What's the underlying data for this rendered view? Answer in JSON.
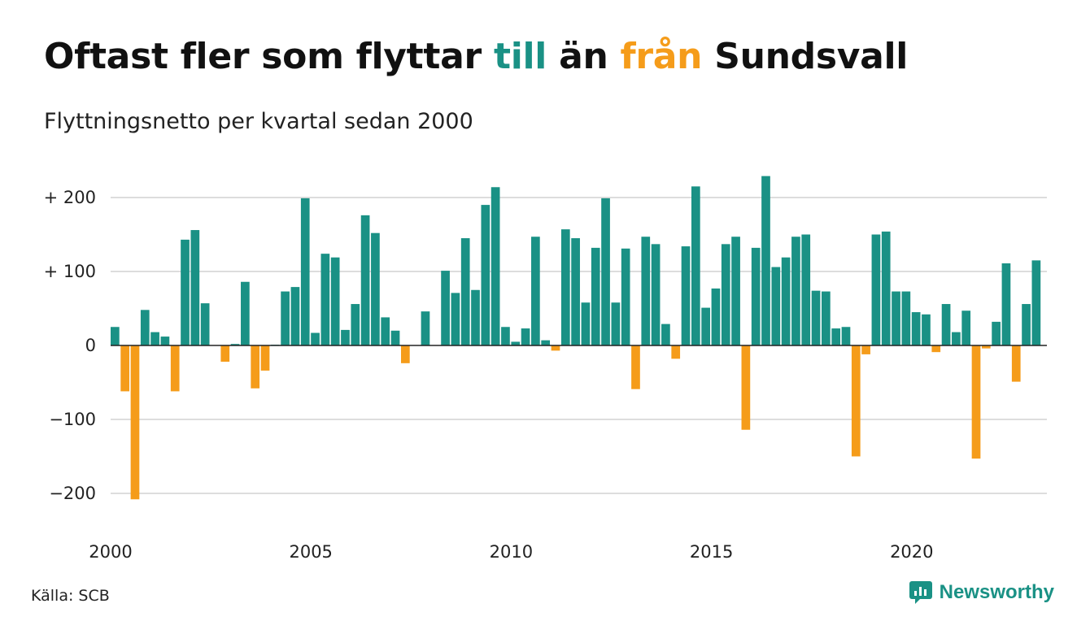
{
  "header": {
    "title_part1": "Oftast fler som flyttar ",
    "title_pos": "till",
    "title_part2": " än ",
    "title_neg": "från",
    "title_part3": " Sundsvall",
    "subtitle": "Flyttningsnetto per kvartal sedan 2000"
  },
  "footer": {
    "source": "Källa: SCB",
    "brand": "Newsworthy"
  },
  "colors": {
    "positive": "#1a9185",
    "negative": "#f59c1a",
    "grid": "#dddddd",
    "zero": "#222222"
  },
  "chart_data": {
    "type": "bar",
    "title": "Oftast fler som flyttar till än från Sundsvall",
    "subtitle": "Flyttningsnetto per kvartal sedan 2000",
    "xlabel": "",
    "ylabel": "",
    "ylim": [
      -230,
      230
    ],
    "grid": true,
    "legend": "none",
    "y_ticks": [
      {
        "value": 200,
        "label": "+ 200"
      },
      {
        "value": 100,
        "label": "+ 100"
      },
      {
        "value": 0,
        "label": "0"
      },
      {
        "value": -100,
        "label": "−100"
      },
      {
        "value": -200,
        "label": "−200"
      }
    ],
    "x_ticks": [
      {
        "year": 2000,
        "label": "2000"
      },
      {
        "year": 2005,
        "label": "2005"
      },
      {
        "year": 2010,
        "label": "2010"
      },
      {
        "year": 2015,
        "label": "2015"
      },
      {
        "year": 2020,
        "label": "2020"
      }
    ],
    "start": "2000 Q1",
    "frequency": "quarter",
    "values": [
      25,
      -62,
      -208,
      48,
      18,
      12,
      -62,
      143,
      156,
      57,
      0,
      -22,
      2,
      86,
      -58,
      -34,
      1,
      73,
      79,
      199,
      17,
      124,
      119,
      21,
      56,
      176,
      152,
      38,
      20,
      -24,
      0,
      46,
      0,
      101,
      71,
      145,
      75,
      190,
      214,
      25,
      5,
      23,
      147,
      7,
      -7,
      157,
      145,
      58,
      132,
      199,
      58,
      131,
      -59,
      147,
      137,
      29,
      -18,
      134,
      215,
      51,
      77,
      137,
      147,
      -114,
      132,
      229,
      106,
      119,
      147,
      150,
      74,
      73,
      23,
      25,
      -150,
      -12,
      150,
      154,
      73,
      73,
      45,
      42,
      -9,
      56,
      18,
      47,
      -153,
      -4,
      32,
      111,
      -49,
      56,
      115
    ]
  }
}
